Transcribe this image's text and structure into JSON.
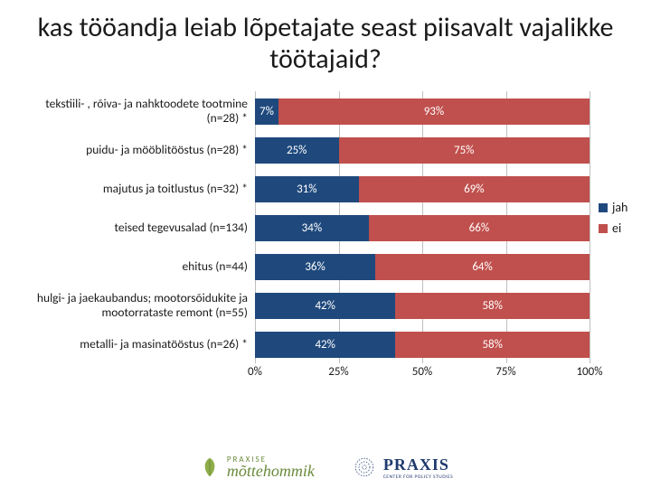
{
  "title": "kas tööandja leiab lõpetajate seast piisavalt vajalikke töötajaid?",
  "chart": {
    "type": "stacked-bar-horizontal",
    "xlim": [
      0,
      100
    ],
    "ticks": [
      0,
      25,
      50,
      75,
      100
    ],
    "tick_labels": [
      "0%",
      "25%",
      "50%",
      "75%",
      "100%"
    ],
    "grid_color": "#bfbfbf",
    "background": "#ffffff",
    "label_fontsize": 13.5,
    "value_fontsize": 13,
    "series": [
      {
        "key": "jah",
        "label": "jah",
        "color": "#1f497d"
      },
      {
        "key": "ei",
        "label": "ei",
        "color": "#c0504d"
      }
    ],
    "categories": [
      {
        "label": "tekstiili- , rõiva- ja nahktoodete tootmine (n=28) *",
        "jah": 7,
        "ei": 93
      },
      {
        "label": "puidu- ja mööblitööstus (n=28) *",
        "jah": 25,
        "ei": 75
      },
      {
        "label": "majutus ja toitlustus (n=32) *",
        "jah": 31,
        "ei": 69
      },
      {
        "label": "teised tegevusalad (n=134)",
        "jah": 34,
        "ei": 66
      },
      {
        "label": "ehitus (n=44)",
        "jah": 36,
        "ei": 64
      },
      {
        "label": "hulgi- ja jaekaubandus; mootorsõidukite ja mootorrataste remont (n=55)",
        "jah": 42,
        "ei": 58
      },
      {
        "label": "metalli- ja masinatööstus (n=26) *",
        "jah": 42,
        "ei": 58
      }
    ]
  },
  "legend": {
    "jah": "jah",
    "ei": "ei"
  },
  "logos": {
    "left": {
      "brand": "PRAXISE",
      "sub": "mõttehommik"
    },
    "right": {
      "brand": "PRAXIS",
      "sub": "CENTER FOR POLICY STUDIES"
    }
  }
}
